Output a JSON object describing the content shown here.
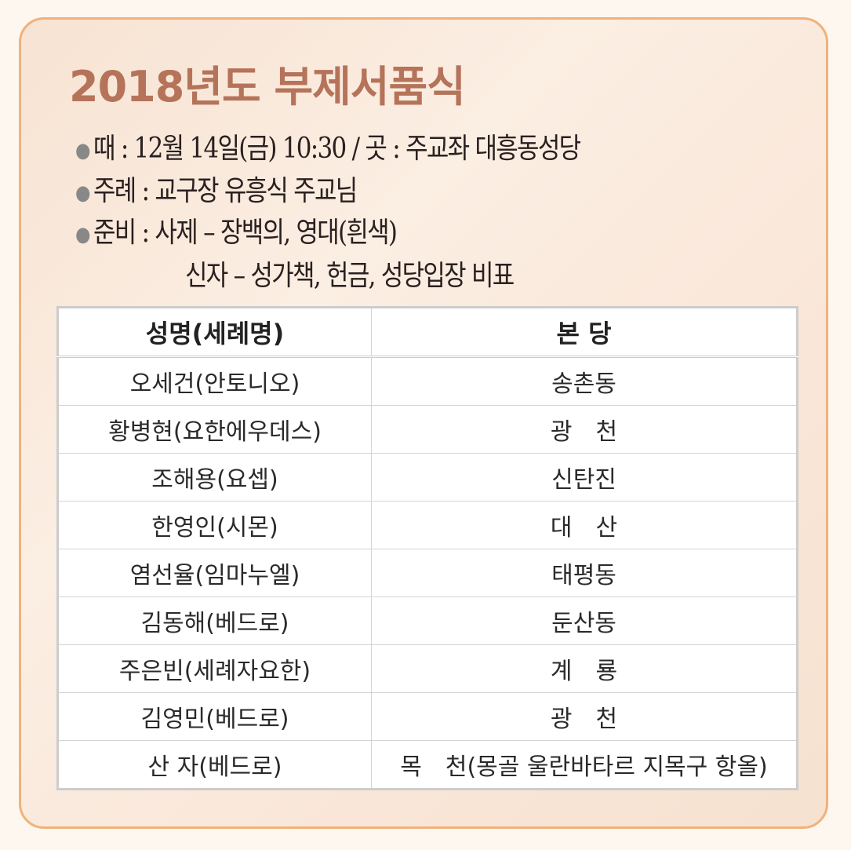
{
  "title": "2018년도 부제서품식",
  "info": [
    "때 : 12월 14일(금) 10:30 / 곳 : 주교좌 대흥동성당",
    "주례 : 교구장 유흥식 주교님",
    "준비 : 사제 – 장백의, 영대(흰색)",
    "신자 – 성가책, 헌금, 성당입장 비표"
  ],
  "table": {
    "headers": [
      "성명(세례명)",
      "본 당"
    ],
    "rows": [
      [
        "오세건(안토니오)",
        "송촌동"
      ],
      [
        "황병현(요한에우데스)",
        "광　천"
      ],
      [
        "조해용(요셉)",
        "신탄진"
      ],
      [
        "한영인(시몬)",
        "대　산"
      ],
      [
        "염선율(임마누엘)",
        "태평동"
      ],
      [
        "김동해(베드로)",
        "둔산동"
      ],
      [
        "주은빈(세례자요한)",
        "계　룡"
      ],
      [
        "김영민(베드로)",
        "광　천"
      ],
      [
        "산 자(베드로)",
        "목　천(몽골 울란바타르 지목구 항올)"
      ]
    ]
  },
  "colors": {
    "title": "#b5735a",
    "border": "#f0b27a"
  }
}
